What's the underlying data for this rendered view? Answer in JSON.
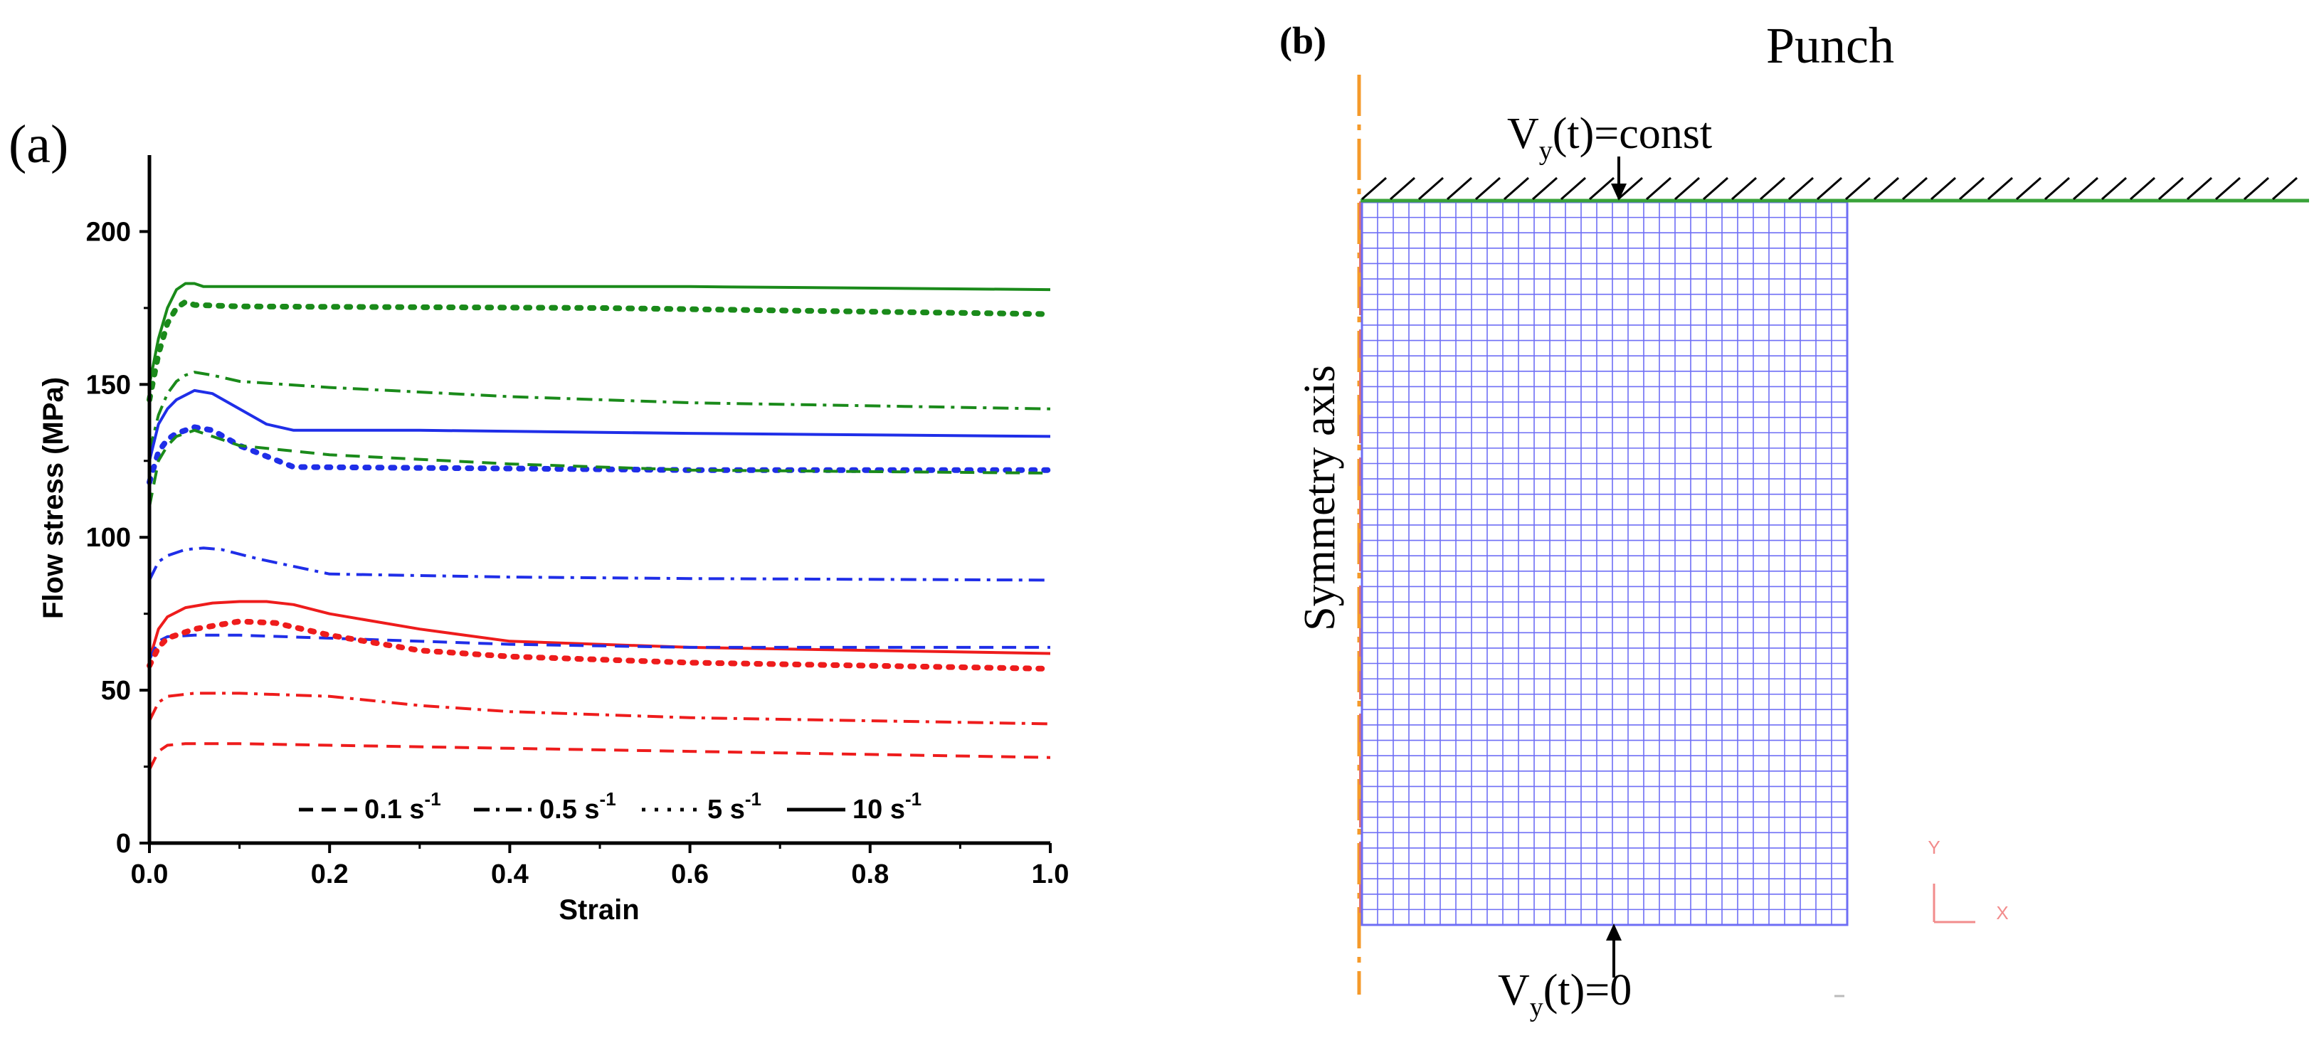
{
  "panel_a": {
    "label": "(a)",
    "chart_data": {
      "type": "line",
      "title": "",
      "xlabel": "Strain",
      "ylabel": "Flow stress (MPa)",
      "xlim": [
        0.0,
        1.0
      ],
      "ylim": [
        0,
        225
      ],
      "xticks": [
        0.0,
        0.2,
        0.4,
        0.6,
        0.8,
        1.0
      ],
      "xtick_labels": [
        "0.0",
        "0.2",
        "0.4",
        "0.6",
        "0.8",
        "1.0"
      ],
      "yticks": [
        0,
        50,
        100,
        150,
        200
      ],
      "ytick_labels": [
        "0",
        "50",
        "100",
        "150",
        "200"
      ],
      "grid": false,
      "legend": {
        "placement": "bottom-center",
        "entries": [
          {
            "style": "dashed",
            "text": "0.1 s",
            "sup": "-1"
          },
          {
            "style": "dashdot",
            "text": "0.5 s",
            "sup": "-1"
          },
          {
            "style": "dotted",
            "text": "5 s",
            "sup": "-1"
          },
          {
            "style": "solid",
            "text": "10 s",
            "sup": "-1"
          }
        ]
      },
      "colors": {
        "green": "#1a8a1a",
        "blue": "#1f2ee8",
        "red": "#ee1c1c",
        "axis": "#000000"
      },
      "series": [
        {
          "name": "green-10",
          "color": "green",
          "style": "solid",
          "x": [
            0,
            0.01,
            0.02,
            0.03,
            0.04,
            0.05,
            0.06,
            0.1,
            0.3,
            0.6,
            1.0
          ],
          "y": [
            150,
            165,
            175,
            181,
            183,
            183,
            182,
            182,
            182,
            182,
            181
          ]
        },
        {
          "name": "green-5",
          "color": "green",
          "style": "dotted",
          "x": [
            0,
            0.01,
            0.02,
            0.03,
            0.04,
            0.05,
            0.1,
            0.5,
            1.0
          ],
          "y": [
            145,
            160,
            170,
            175,
            177,
            176,
            175.5,
            175,
            173
          ]
        },
        {
          "name": "green-0.5",
          "color": "green",
          "style": "dashdot",
          "x": [
            0,
            0.01,
            0.02,
            0.03,
            0.04,
            0.05,
            0.07,
            0.1,
            0.2,
            0.4,
            0.6,
            0.8,
            1.0
          ],
          "y": [
            128,
            140,
            147,
            151,
            153,
            154,
            153,
            151,
            149,
            146,
            144,
            143,
            142
          ]
        },
        {
          "name": "blue-10",
          "color": "blue",
          "style": "solid",
          "x": [
            0,
            0.01,
            0.02,
            0.03,
            0.05,
            0.07,
            0.1,
            0.13,
            0.16,
            0.3,
            0.6,
            1.0
          ],
          "y": [
            125,
            137,
            142,
            145,
            148,
            147,
            142,
            137,
            135,
            135,
            134,
            133
          ]
        },
        {
          "name": "blue-5",
          "color": "blue",
          "style": "dotted",
          "x": [
            0,
            0.01,
            0.02,
            0.03,
            0.05,
            0.07,
            0.1,
            0.16,
            0.4,
            0.6,
            1.0
          ],
          "y": [
            118,
            128,
            132,
            134,
            136,
            135,
            130,
            123,
            122.5,
            122,
            122
          ]
        },
        {
          "name": "green-0.1",
          "color": "green",
          "style": "dashed",
          "x": [
            0,
            0.01,
            0.02,
            0.03,
            0.05,
            0.07,
            0.1,
            0.2,
            0.4,
            0.6,
            1.0
          ],
          "y": [
            110,
            125,
            130,
            133,
            135,
            133,
            130,
            127,
            124,
            122,
            121
          ]
        },
        {
          "name": "blue-0.5",
          "color": "blue",
          "style": "dashdot",
          "x": [
            0,
            0.01,
            0.02,
            0.04,
            0.06,
            0.08,
            0.12,
            0.2,
            0.4,
            0.6,
            1.0
          ],
          "y": [
            86,
            92,
            94,
            96,
            96.5,
            96,
            93,
            88,
            87,
            86.5,
            86
          ]
        },
        {
          "name": "red-10",
          "color": "red",
          "style": "solid",
          "x": [
            0,
            0.01,
            0.02,
            0.04,
            0.07,
            0.1,
            0.13,
            0.16,
            0.2,
            0.3,
            0.4,
            0.6,
            0.8,
            1.0
          ],
          "y": [
            60,
            70,
            74,
            77,
            78.5,
            79,
            79,
            78,
            75,
            70,
            66,
            64,
            63,
            62
          ]
        },
        {
          "name": "blue-0.1",
          "color": "blue",
          "style": "dashed",
          "x": [
            0,
            0.01,
            0.02,
            0.05,
            0.1,
            0.2,
            0.4,
            0.6,
            1.0
          ],
          "y": [
            60,
            66,
            67.5,
            68,
            68,
            67,
            65,
            64,
            64
          ]
        },
        {
          "name": "red-5",
          "color": "red",
          "style": "dotted",
          "x": [
            0,
            0.01,
            0.02,
            0.05,
            0.1,
            0.14,
            0.2,
            0.3,
            0.4,
            0.6,
            0.8,
            1.0
          ],
          "y": [
            58,
            64,
            67,
            70,
            72.5,
            72,
            68,
            63,
            61,
            59,
            58,
            57
          ]
        },
        {
          "name": "red-0.5",
          "color": "red",
          "style": "dashdot",
          "x": [
            0,
            0.01,
            0.02,
            0.05,
            0.1,
            0.2,
            0.3,
            0.4,
            0.6,
            0.8,
            1.0
          ],
          "y": [
            40,
            46,
            48,
            49,
            49,
            48,
            45,
            43,
            41,
            40,
            39
          ]
        },
        {
          "name": "red-0.1",
          "color": "red",
          "style": "dashed",
          "x": [
            0,
            0.01,
            0.02,
            0.04,
            0.1,
            0.2,
            0.4,
            0.6,
            0.8,
            1.0
          ],
          "y": [
            24,
            30,
            32,
            32.5,
            32.5,
            32,
            31,
            30,
            29,
            28
          ]
        }
      ]
    }
  },
  "panel_b": {
    "label": "(b)",
    "title": "Punch",
    "top_condition": {
      "main": "V",
      "sub": "y",
      "rest": "(t)=const"
    },
    "bottom_condition": {
      "main": "V",
      "sub": "y",
      "rest": "(t)=0"
    },
    "axis_label": "Symmetry axis",
    "triad": {
      "y_label": "Y",
      "x_label": "X"
    },
    "mesh": {
      "columns": 31,
      "rows": 47
    },
    "colors": {
      "mesh": "#6e6ef5",
      "punch_line": "#39a339",
      "symmetry_axis": "#f59a2a",
      "left_edge": "#e07070",
      "triad": "#f28c8c"
    }
  }
}
